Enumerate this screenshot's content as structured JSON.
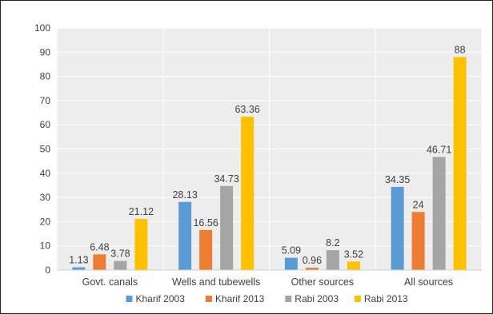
{
  "chart_data": {
    "type": "bar",
    "title": "",
    "xlabel": "",
    "ylabel": "",
    "ylim": [
      0,
      100
    ],
    "yticks": [
      0,
      10,
      20,
      30,
      40,
      50,
      60,
      70,
      80,
      90,
      100
    ],
    "grid": true,
    "legend_position": "bottom",
    "categories": [
      "Govt. canals",
      "Wells and tubewells",
      "Other sources",
      "All sources"
    ],
    "series": [
      {
        "name": "Kharif 2003",
        "color": "#5b9bd5",
        "values": [
          1.13,
          28.13,
          5.09,
          34.35
        ]
      },
      {
        "name": "Kharif 2013",
        "color": "#ed7d31",
        "values": [
          6.48,
          16.56,
          0.96,
          24
        ]
      },
      {
        "name": "Rabi 2003",
        "color": "#a5a5a5",
        "values": [
          3.78,
          34.73,
          8.2,
          46.71
        ]
      },
      {
        "name": "Rabi 2013",
        "color": "#ffc000",
        "values": [
          21.12,
          63.36,
          3.52,
          88
        ]
      }
    ]
  }
}
